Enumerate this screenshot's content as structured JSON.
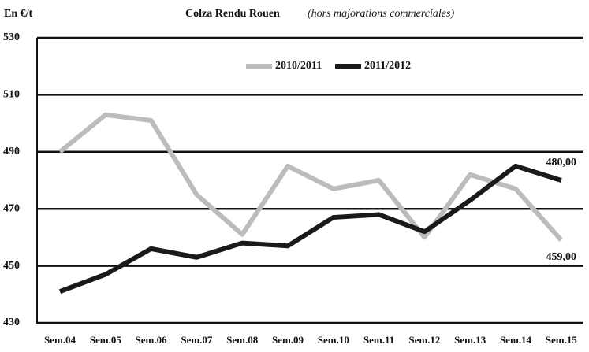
{
  "chart_data": {
    "type": "line",
    "title": "Colza Rendu Rouen",
    "subtitle": "(hors majorations commerciales)",
    "y_label": "En €/t",
    "categories": [
      "Sem.04",
      "Sem.05",
      "Sem.06",
      "Sem.07",
      "Sem.08",
      "Sem.09",
      "Sem.10",
      "Sem.11",
      "Sem.12",
      "Sem.13",
      "Sem.14",
      "Sem.15"
    ],
    "series": [
      {
        "name": "2010/2011",
        "color": "#bcbcbc",
        "values": [
          490,
          503,
          501,
          475,
          461,
          485,
          477,
          480,
          460,
          482,
          477,
          459
        ],
        "value_labels": [
          null,
          null,
          null,
          null,
          null,
          null,
          null,
          null,
          null,
          null,
          null,
          "459,00"
        ]
      },
      {
        "name": "2011/2012",
        "color": "#1a1a1a",
        "values": [
          441,
          447,
          456,
          453,
          458,
          457,
          467,
          468,
          462,
          473,
          485,
          480
        ],
        "value_labels": [
          null,
          null,
          null,
          null,
          null,
          null,
          null,
          null,
          null,
          null,
          null,
          "480,00"
        ]
      }
    ],
    "ylim": [
      430,
      530
    ],
    "yticks": [
      430,
      450,
      470,
      490,
      510,
      530
    ],
    "grid": true,
    "legend": "top"
  }
}
